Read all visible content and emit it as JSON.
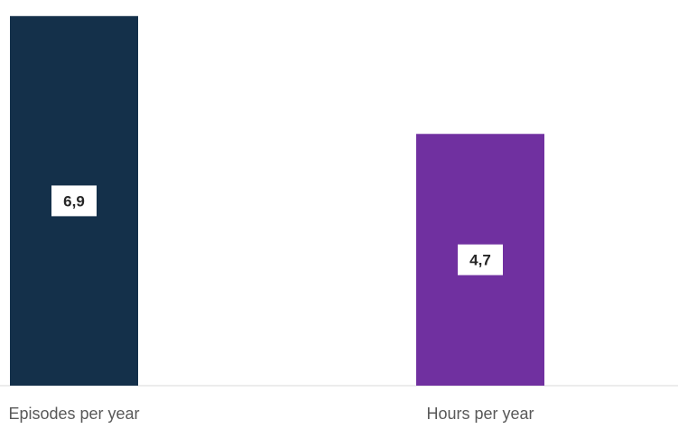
{
  "chart_data": {
    "type": "bar",
    "title": "",
    "xlabel": "",
    "ylabel": "",
    "categories": [
      "Episodes per year",
      "Hours per year"
    ],
    "values": [
      6.9,
      4.7
    ],
    "value_labels": [
      "6,9",
      "4,7"
    ],
    "colors": [
      "#14304a",
      "#7030a0"
    ],
    "ylim": [
      0,
      7.2
    ],
    "grid": false,
    "legend": "none"
  }
}
